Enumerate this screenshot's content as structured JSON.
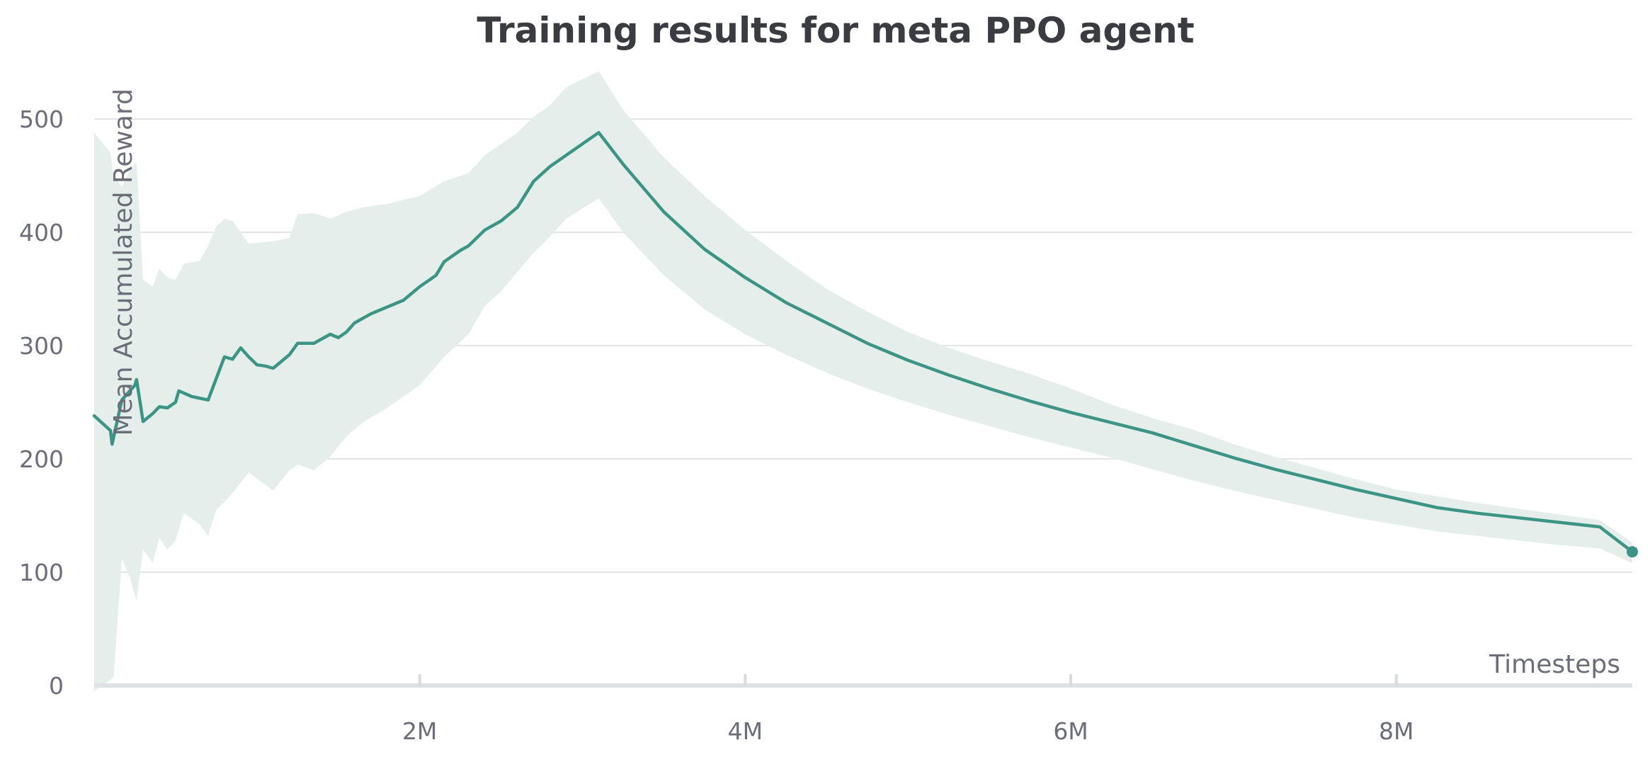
{
  "chart_data": {
    "type": "line",
    "title": "Training results for meta PPO agent",
    "xlabel": "Timesteps",
    "ylabel": "Mean Accumulated Reward",
    "xlim": [
      0,
      9450000
    ],
    "ylim": [
      0,
      550
    ],
    "x_ticks": [
      {
        "value": 2000000,
        "label": "2M"
      },
      {
        "value": 4000000,
        "label": "4M"
      },
      {
        "value": 6000000,
        "label": "6M"
      },
      {
        "value": 8000000,
        "label": "8M"
      }
    ],
    "y_ticks": [
      {
        "value": 0,
        "label": "0"
      },
      {
        "value": 100,
        "label": "100"
      },
      {
        "value": 200,
        "label": "200"
      },
      {
        "value": 300,
        "label": "300"
      },
      {
        "value": 400,
        "label": "400"
      },
      {
        "value": 500,
        "label": "500"
      }
    ],
    "grid": true,
    "colors": {
      "line": "#3c9484",
      "band": "#e6eeec"
    },
    "series": [
      {
        "points": [
          [
            0,
            238
          ],
          [
            100000,
            225
          ],
          [
            110000,
            213
          ],
          [
            170000,
            252
          ],
          [
            250000,
            265
          ],
          [
            260000,
            270
          ],
          [
            300000,
            233
          ],
          [
            360000,
            240
          ],
          [
            400000,
            246
          ],
          [
            450000,
            245
          ],
          [
            500000,
            250
          ],
          [
            520000,
            260
          ],
          [
            600000,
            255
          ],
          [
            700000,
            252
          ],
          [
            800000,
            290
          ],
          [
            850000,
            288
          ],
          [
            900000,
            298
          ],
          [
            950000,
            290
          ],
          [
            1000000,
            283
          ],
          [
            1050000,
            282
          ],
          [
            1100000,
            280
          ],
          [
            1200000,
            292
          ],
          [
            1250000,
            302
          ],
          [
            1300000,
            302
          ],
          [
            1350000,
            302
          ],
          [
            1400000,
            306
          ],
          [
            1450000,
            310
          ],
          [
            1500000,
            307
          ],
          [
            1550000,
            312
          ],
          [
            1600000,
            320
          ],
          [
            1700000,
            328
          ],
          [
            1800000,
            334
          ],
          [
            1900000,
            340
          ],
          [
            2000000,
            352
          ],
          [
            2100000,
            362
          ],
          [
            2150000,
            374
          ],
          [
            2250000,
            384
          ],
          [
            2300000,
            388
          ],
          [
            2400000,
            402
          ],
          [
            2500000,
            410
          ],
          [
            2600000,
            422
          ],
          [
            2700000,
            445
          ],
          [
            2800000,
            458
          ],
          [
            2900000,
            468
          ],
          [
            3000000,
            478
          ],
          [
            3100000,
            488
          ],
          [
            3250000,
            460
          ],
          [
            3500000,
            418
          ],
          [
            3750000,
            385
          ],
          [
            4000000,
            360
          ],
          [
            4250000,
            338
          ],
          [
            4500000,
            320
          ],
          [
            4750000,
            302
          ],
          [
            5000000,
            287
          ],
          [
            5250000,
            274
          ],
          [
            5500000,
            262
          ],
          [
            5750000,
            251
          ],
          [
            6000000,
            241
          ],
          [
            6250000,
            232
          ],
          [
            6500000,
            223
          ],
          [
            6750000,
            212
          ],
          [
            7000000,
            201
          ],
          [
            7250000,
            191
          ],
          [
            7500000,
            182
          ],
          [
            7750000,
            173
          ],
          [
            8000000,
            165
          ],
          [
            8250000,
            157
          ],
          [
            8500000,
            152
          ],
          [
            8750000,
            148
          ],
          [
            9000000,
            144
          ],
          [
            9250000,
            140
          ],
          [
            9450000,
            118
          ]
        ],
        "band_upper": [
          [
            0,
            488
          ],
          [
            100000,
            470
          ],
          [
            120000,
            450
          ],
          [
            170000,
            440
          ],
          [
            220000,
            455
          ],
          [
            260000,
            462
          ],
          [
            300000,
            358
          ],
          [
            360000,
            352
          ],
          [
            400000,
            368
          ],
          [
            450000,
            360
          ],
          [
            500000,
            358
          ],
          [
            550000,
            372
          ],
          [
            650000,
            375
          ],
          [
            700000,
            388
          ],
          [
            750000,
            405
          ],
          [
            800000,
            412
          ],
          [
            850000,
            410
          ],
          [
            950000,
            390
          ],
          [
            1100000,
            392
          ],
          [
            1200000,
            395
          ],
          [
            1250000,
            416
          ],
          [
            1350000,
            417
          ],
          [
            1450000,
            412
          ],
          [
            1550000,
            418
          ],
          [
            1650000,
            422
          ],
          [
            1800000,
            425
          ],
          [
            2000000,
            432
          ],
          [
            2150000,
            445
          ],
          [
            2300000,
            452
          ],
          [
            2400000,
            468
          ],
          [
            2500000,
            478
          ],
          [
            2600000,
            488
          ],
          [
            2700000,
            502
          ],
          [
            2800000,
            512
          ],
          [
            2900000,
            528
          ],
          [
            3100000,
            542
          ],
          [
            3250000,
            508
          ],
          [
            3500000,
            466
          ],
          [
            3750000,
            432
          ],
          [
            4000000,
            402
          ],
          [
            4250000,
            375
          ],
          [
            4500000,
            350
          ],
          [
            4750000,
            330
          ],
          [
            5000000,
            312
          ],
          [
            5250000,
            298
          ],
          [
            5500000,
            286
          ],
          [
            5750000,
            275
          ],
          [
            6000000,
            262
          ],
          [
            6250000,
            248
          ],
          [
            6500000,
            236
          ],
          [
            6750000,
            226
          ],
          [
            7000000,
            213
          ],
          [
            7250000,
            202
          ],
          [
            7500000,
            192
          ],
          [
            7750000,
            182
          ],
          [
            8000000,
            173
          ],
          [
            8250000,
            167
          ],
          [
            8500000,
            161
          ],
          [
            8750000,
            156
          ],
          [
            9000000,
            151
          ],
          [
            9250000,
            146
          ],
          [
            9450000,
            126
          ]
        ],
        "band_lower": [
          [
            0,
            -5
          ],
          [
            100000,
            5
          ],
          [
            120000,
            8
          ],
          [
            170000,
            112
          ],
          [
            220000,
            95
          ],
          [
            260000,
            75
          ],
          [
            300000,
            120
          ],
          [
            360000,
            108
          ],
          [
            400000,
            130
          ],
          [
            450000,
            120
          ],
          [
            500000,
            128
          ],
          [
            550000,
            152
          ],
          [
            650000,
            142
          ],
          [
            700000,
            132
          ],
          [
            750000,
            155
          ],
          [
            800000,
            162
          ],
          [
            850000,
            170
          ],
          [
            950000,
            188
          ],
          [
            1100000,
            172
          ],
          [
            1200000,
            190
          ],
          [
            1250000,
            195
          ],
          [
            1350000,
            190
          ],
          [
            1450000,
            202
          ],
          [
            1550000,
            220
          ],
          [
            1650000,
            232
          ],
          [
            1800000,
            245
          ],
          [
            2000000,
            265
          ],
          [
            2150000,
            290
          ],
          [
            2300000,
            310
          ],
          [
            2400000,
            335
          ],
          [
            2500000,
            348
          ],
          [
            2600000,
            365
          ],
          [
            2700000,
            382
          ],
          [
            2800000,
            396
          ],
          [
            2900000,
            412
          ],
          [
            3100000,
            430
          ],
          [
            3250000,
            400
          ],
          [
            3500000,
            362
          ],
          [
            3750000,
            332
          ],
          [
            4000000,
            310
          ],
          [
            4250000,
            292
          ],
          [
            4500000,
            276
          ],
          [
            4750000,
            262
          ],
          [
            5000000,
            250
          ],
          [
            5250000,
            239
          ],
          [
            5500000,
            229
          ],
          [
            5750000,
            219
          ],
          [
            6000000,
            210
          ],
          [
            6250000,
            201
          ],
          [
            6500000,
            191
          ],
          [
            6750000,
            181
          ],
          [
            7000000,
            172
          ],
          [
            7250000,
            164
          ],
          [
            7500000,
            156
          ],
          [
            7750000,
            148
          ],
          [
            8000000,
            142
          ],
          [
            8250000,
            136
          ],
          [
            8500000,
            132
          ],
          [
            8750000,
            128
          ],
          [
            9000000,
            124
          ],
          [
            9250000,
            121
          ],
          [
            9450000,
            108
          ]
        ]
      }
    ]
  }
}
